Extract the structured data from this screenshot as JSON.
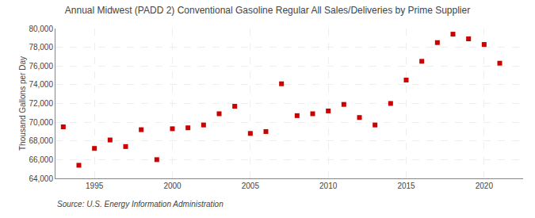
{
  "chart_data": {
    "type": "scatter",
    "title": "Annual Midwest (PADD 2) Conventional Gasoline Regular All Sales/Deliveries by Prime Supplier",
    "ylabel": "Thousand Gallons per Day",
    "source": "Source: U.S. Energy Information Administration",
    "x": [
      1993,
      1994,
      1995,
      1996,
      1997,
      1998,
      1999,
      2000,
      2001,
      2002,
      2003,
      2004,
      2005,
      2006,
      2007,
      2008,
      2009,
      2010,
      2011,
      2012,
      2013,
      2014,
      2015,
      2016,
      2017,
      2018,
      2019,
      2020,
      2021
    ],
    "values": [
      69500,
      65400,
      67200,
      68100,
      67400,
      69200,
      66000,
      69300,
      69400,
      69700,
      70900,
      71700,
      68800,
      69000,
      74100,
      70700,
      70900,
      71200,
      71900,
      70500,
      69700,
      72000,
      74500,
      76500,
      78500,
      79400,
      78900,
      78300,
      76300
    ],
    "color": "#cc0000",
    "marker": "square",
    "xlim": [
      1992.5,
      2022.5
    ],
    "xticks": [
      1995,
      2000,
      2005,
      2010,
      2015,
      2020
    ],
    "ylim": [
      64000,
      80000
    ],
    "yticks": [
      {
        "value": 64000,
        "label": "64,000"
      },
      {
        "value": 66000,
        "label": "66,000"
      },
      {
        "value": 68000,
        "label": "68,000"
      },
      {
        "value": 70000,
        "label": "70,000"
      },
      {
        "value": 72000,
        "label": "72,000"
      },
      {
        "value": 74000,
        "label": "74,000"
      },
      {
        "value": 76000,
        "label": "76,000"
      },
      {
        "value": 78000,
        "label": "78,000"
      },
      {
        "value": 80000,
        "label": "80,000"
      }
    ],
    "grid": true
  }
}
